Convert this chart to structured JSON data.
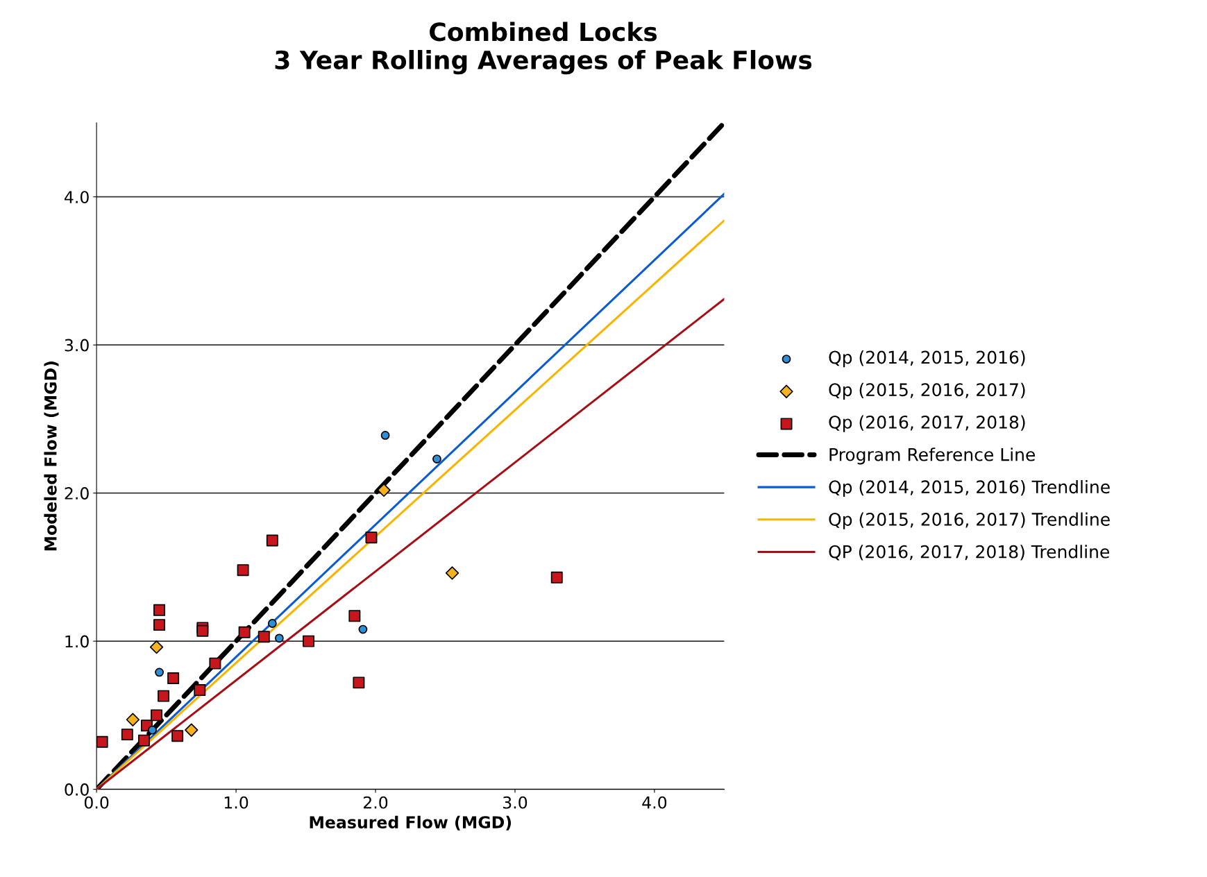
{
  "chart_data": {
    "type": "scatter",
    "title": "Combined Locks\n3 Year Rolling Averages of Peak Flows",
    "xlabel": "Measured Flow (MGD)",
    "ylabel": "Modeled Flow (MGD)",
    "xlim": [
      0,
      4.5
    ],
    "ylim": [
      0,
      4.5
    ],
    "xticks": [
      {
        "value": 0,
        "label": "0.0"
      },
      {
        "value": 1,
        "label": "1.0"
      },
      {
        "value": 2,
        "label": "2.0"
      },
      {
        "value": 3,
        "label": "3.0"
      },
      {
        "value": 4,
        "label": "4.0"
      }
    ],
    "yticks": [
      {
        "value": 0,
        "label": "0.0"
      },
      {
        "value": 1,
        "label": "1.0"
      },
      {
        "value": 2,
        "label": "2.0"
      },
      {
        "value": 3,
        "label": "3.0"
      },
      {
        "value": 4,
        "label": "4.0"
      }
    ],
    "grid": "y",
    "legend": "right",
    "series": [
      {
        "name": "Qp (2014, 2015, 2016)",
        "marker": "circle",
        "color": "#2e8fd6",
        "x": [
          2.07,
          2.44,
          1.26,
          1.31,
          1.91,
          0.45,
          0.4
        ],
        "values": [
          2.39,
          2.23,
          1.12,
          1.02,
          1.08,
          0.79,
          0.4
        ]
      },
      {
        "name": "Qp (2015, 2016, 2017)",
        "marker": "diamond",
        "color": "#f5b21f",
        "x": [
          2.06,
          2.55,
          0.43,
          0.26,
          0.68
        ],
        "values": [
          2.02,
          1.46,
          0.96,
          0.47,
          0.4
        ]
      },
      {
        "name": "Qp (2016, 2017, 2018)",
        "marker": "square",
        "color": "#c8161d",
        "x": [
          0.04,
          0.22,
          0.34,
          0.36,
          0.43,
          0.45,
          0.45,
          0.48,
          0.55,
          0.58,
          0.74,
          0.76,
          0.76,
          0.85,
          1.05,
          1.06,
          1.26,
          1.2,
          1.52,
          1.85,
          1.88,
          1.97,
          3.3
        ],
        "values": [
          0.32,
          0.37,
          0.33,
          0.43,
          0.5,
          1.11,
          1.21,
          0.63,
          0.75,
          0.36,
          0.67,
          1.09,
          1.07,
          0.85,
          1.48,
          1.06,
          1.68,
          1.03,
          1.0,
          1.17,
          0.72,
          1.7,
          1.43
        ]
      },
      {
        "name": "Program Reference Line",
        "type": "line",
        "line_style": "dashed",
        "marker": "none",
        "color": "#000000",
        "x": [
          0,
          4.5
        ],
        "values": [
          0,
          4.5
        ]
      },
      {
        "name": "Qp (2014, 2015, 2016) Trendline",
        "type": "line",
        "line_style": "solid",
        "marker": "none",
        "color": "#0a5cd0",
        "x": [
          0,
          4.5
        ],
        "values": [
          0,
          4.02
        ]
      },
      {
        "name": "Qp (2015, 2016, 2017) Trendline",
        "type": "line",
        "line_style": "solid",
        "marker": "none",
        "color": "#f7b500",
        "x": [
          0,
          4.5
        ],
        "values": [
          0,
          3.84
        ]
      },
      {
        "name": "QP (2016, 2017, 2018) Trendline",
        "type": "line",
        "line_style": "solid",
        "marker": "none",
        "color": "#a50f15",
        "x": [
          0,
          4.5
        ],
        "values": [
          0,
          3.31
        ]
      }
    ]
  }
}
